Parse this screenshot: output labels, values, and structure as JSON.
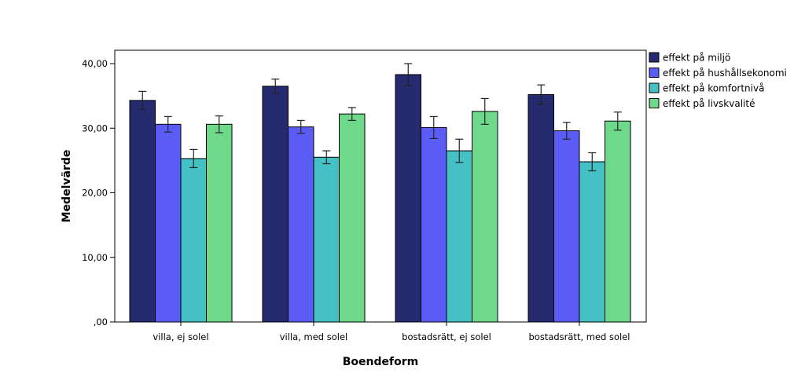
{
  "chart_data": {
    "type": "bar",
    "title": "",
    "xlabel": "Boendeform",
    "ylabel": "Medelvärde",
    "ylim": [
      0,
      42
    ],
    "yticks": [
      0,
      10,
      20,
      30,
      40
    ],
    "ytick_labels": [
      ",00",
      "10,00",
      "20,00",
      "30,00",
      "40,00"
    ],
    "categories": [
      "villa, ej solel",
      "villa, med solel",
      "bostadsrätt, ej solel",
      "bostadsrätt, med solel"
    ],
    "series": [
      {
        "name": "effekt på miljö",
        "color": "#262a6e",
        "values": [
          34.3,
          36.5,
          38.3,
          35.2
        ],
        "error": [
          1.4,
          1.1,
          1.7,
          1.5
        ]
      },
      {
        "name": "effekt på hushållsekonomi",
        "color": "#5a5cf5",
        "values": [
          30.6,
          30.2,
          30.1,
          29.6
        ],
        "error": [
          1.2,
          1.0,
          1.7,
          1.3
        ]
      },
      {
        "name": "effekt på komfortnivå",
        "color": "#45c0c5",
        "values": [
          25.3,
          25.5,
          26.5,
          24.8
        ],
        "error": [
          1.4,
          1.0,
          1.8,
          1.4
        ]
      },
      {
        "name": "effekt på livskvalité",
        "color": "#6ed98a",
        "values": [
          30.6,
          32.2,
          32.6,
          31.1
        ],
        "error": [
          1.3,
          1.0,
          2.0,
          1.4
        ]
      }
    ],
    "error_bars": true,
    "grid": false,
    "legend_position": "right"
  }
}
